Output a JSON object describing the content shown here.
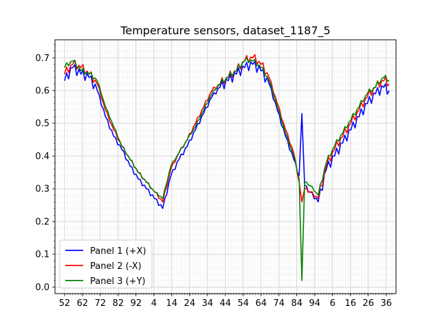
{
  "chart_data": {
    "type": "line",
    "title": "Temperature sensors, dataset_1187_5",
    "xlabel": "",
    "ylabel": "",
    "ylim": [
      -0.02,
      0.755
    ],
    "xlim": [
      -7,
      243
    ],
    "x_tick_labels": [
      "52",
      "62",
      "72",
      "82",
      "92",
      "4",
      "14",
      "24",
      "34",
      "44",
      "54",
      "64",
      "74",
      "84",
      "94",
      "6",
      "16",
      "26",
      "36"
    ],
    "y_ticks": [
      0.0,
      0.1,
      0.2,
      0.3,
      0.4,
      0.5,
      0.6,
      0.7
    ],
    "y_tick_labels": [
      "0.0",
      "0.1",
      "0.2",
      "0.3",
      "0.4",
      "0.5",
      "0.6",
      "0.7"
    ],
    "grid": "on (major and minor)",
    "legend": "lower-left",
    "colors": {
      "panel1": "#0000ff",
      "panel2": "#ff0000",
      "panel3": "#008000"
    },
    "series": [
      {
        "name": "Panel 1 (+X)",
        "color": "#0000ff",
        "x": [
          0,
          6,
          12,
          18,
          24,
          30,
          36,
          42,
          48,
          54,
          60,
          66,
          72,
          78,
          84,
          90,
          96,
          102,
          108,
          114,
          120,
          126,
          132,
          138,
          144,
          150,
          156,
          162,
          168,
          172,
          174,
          176,
          180,
          186,
          192,
          198,
          204,
          210,
          216,
          222,
          228,
          234,
          238
        ],
        "y": [
          0.63,
          0.67,
          0.65,
          0.64,
          0.6,
          0.52,
          0.46,
          0.42,
          0.37,
          0.33,
          0.3,
          0.27,
          0.24,
          0.34,
          0.39,
          0.43,
          0.48,
          0.53,
          0.58,
          0.61,
          0.63,
          0.65,
          0.67,
          0.68,
          0.66,
          0.62,
          0.54,
          0.46,
          0.39,
          0.34,
          0.53,
          0.31,
          0.29,
          0.26,
          0.36,
          0.4,
          0.44,
          0.48,
          0.52,
          0.56,
          0.59,
          0.61,
          0.6
        ]
      },
      {
        "name": "Panel 2 (-X)",
        "color": "#ff0000",
        "x": [
          0,
          6,
          12,
          18,
          24,
          30,
          36,
          42,
          48,
          54,
          60,
          66,
          72,
          78,
          84,
          90,
          96,
          102,
          108,
          114,
          120,
          126,
          132,
          138,
          144,
          150,
          156,
          162,
          168,
          172,
          174,
          176,
          180,
          186,
          192,
          198,
          204,
          210,
          216,
          222,
          228,
          234,
          238
        ],
        "y": [
          0.65,
          0.68,
          0.67,
          0.65,
          0.62,
          0.54,
          0.48,
          0.43,
          0.39,
          0.35,
          0.32,
          0.29,
          0.26,
          0.36,
          0.41,
          0.45,
          0.5,
          0.55,
          0.6,
          0.62,
          0.64,
          0.66,
          0.69,
          0.7,
          0.68,
          0.64,
          0.56,
          0.48,
          0.41,
          0.32,
          0.26,
          0.3,
          0.29,
          0.27,
          0.37,
          0.42,
          0.46,
          0.5,
          0.54,
          0.58,
          0.61,
          0.63,
          0.62
        ]
      },
      {
        "name": "Panel 3 (+Y)",
        "color": "#008000",
        "x": [
          0,
          6,
          12,
          18,
          24,
          30,
          36,
          42,
          48,
          54,
          60,
          66,
          72,
          78,
          84,
          90,
          96,
          102,
          108,
          114,
          120,
          126,
          132,
          138,
          144,
          150,
          156,
          162,
          168,
          172,
          174,
          176,
          180,
          186,
          192,
          198,
          204,
          210,
          216,
          222,
          228,
          234,
          238
        ],
        "y": [
          0.67,
          0.69,
          0.66,
          0.65,
          0.63,
          0.55,
          0.49,
          0.43,
          0.39,
          0.35,
          0.32,
          0.29,
          0.27,
          0.37,
          0.41,
          0.45,
          0.49,
          0.54,
          0.59,
          0.62,
          0.64,
          0.66,
          0.69,
          0.69,
          0.67,
          0.63,
          0.55,
          0.47,
          0.4,
          0.33,
          0.02,
          0.32,
          0.31,
          0.28,
          0.38,
          0.43,
          0.47,
          0.51,
          0.55,
          0.59,
          0.61,
          0.64,
          0.63
        ]
      }
    ]
  }
}
